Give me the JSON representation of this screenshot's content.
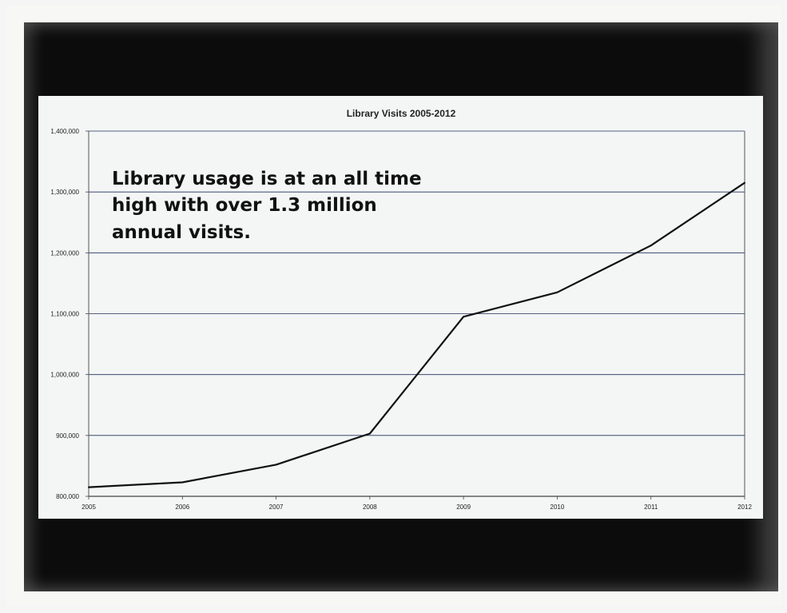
{
  "chart_data": {
    "type": "line",
    "title": "Library Visits 2005-2012",
    "xlabel": "",
    "ylabel": "",
    "categories": [
      "2005",
      "2006",
      "2007",
      "2008",
      "2009",
      "2010",
      "2011",
      "2012"
    ],
    "values": [
      815000,
      823000,
      852000,
      903000,
      1095000,
      1135000,
      1212000,
      1315000
    ],
    "ylim": [
      800000,
      1400000
    ],
    "yticks": [
      800000,
      900000,
      1000000,
      1100000,
      1200000,
      1300000,
      1400000
    ],
    "ytick_labels": [
      "800,000",
      "900,000",
      "1,000,000",
      "1,100,000",
      "1,200,000",
      "1,300,000",
      "1,400,000"
    ],
    "grid": true,
    "legend": "none",
    "annotation": [
      "Library usage is at an all time",
      "high with over 1.3 million",
      "annual visits."
    ],
    "line_color": "#111111",
    "grid_color": "#1f2f5a"
  }
}
